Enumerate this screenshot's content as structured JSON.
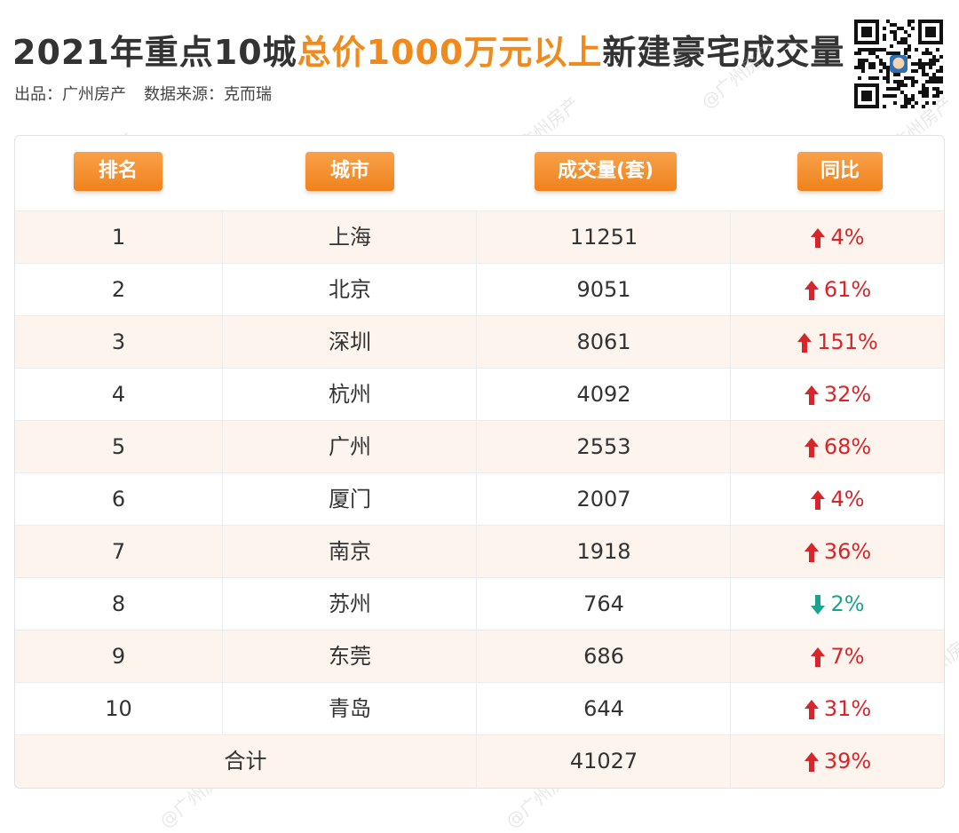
{
  "title": {
    "part1": "2021年重点10城",
    "highlight": "总价1000万元以上",
    "part2": "新建豪宅成交量"
  },
  "source": {
    "publisher": "出品：广州房产",
    "data_source": "数据来源：克而瑞"
  },
  "watermark_text": "@广州房产",
  "colors": {
    "accent": "#f08a1c",
    "up": "#d7262b",
    "down": "#1aa48f",
    "row_stripe": "#fdf4ed"
  },
  "chart_data": {
    "type": "table",
    "columns": [
      "排名",
      "城市",
      "成交量(套)",
      "同比"
    ],
    "rows": [
      {
        "rank": "1",
        "city": "上海",
        "volume": "11251",
        "yoy": "4%",
        "direction": "up"
      },
      {
        "rank": "2",
        "city": "北京",
        "volume": "9051",
        "yoy": "61%",
        "direction": "up"
      },
      {
        "rank": "3",
        "city": "深圳",
        "volume": "8061",
        "yoy": "151%",
        "direction": "up"
      },
      {
        "rank": "4",
        "city": "杭州",
        "volume": "4092",
        "yoy": "32%",
        "direction": "up"
      },
      {
        "rank": "5",
        "city": "广州",
        "volume": "2553",
        "yoy": "68%",
        "direction": "up"
      },
      {
        "rank": "6",
        "city": "厦门",
        "volume": "2007",
        "yoy": "4%",
        "direction": "up"
      },
      {
        "rank": "7",
        "city": "南京",
        "volume": "1918",
        "yoy": "36%",
        "direction": "up"
      },
      {
        "rank": "8",
        "city": "苏州",
        "volume": "764",
        "yoy": "2%",
        "direction": "down"
      },
      {
        "rank": "9",
        "city": "东莞",
        "volume": "686",
        "yoy": "7%",
        "direction": "up"
      },
      {
        "rank": "10",
        "city": "青岛",
        "volume": "644",
        "yoy": "31%",
        "direction": "up"
      }
    ],
    "total": {
      "label": "合计",
      "volume": "41027",
      "yoy": "39%",
      "direction": "up"
    }
  }
}
